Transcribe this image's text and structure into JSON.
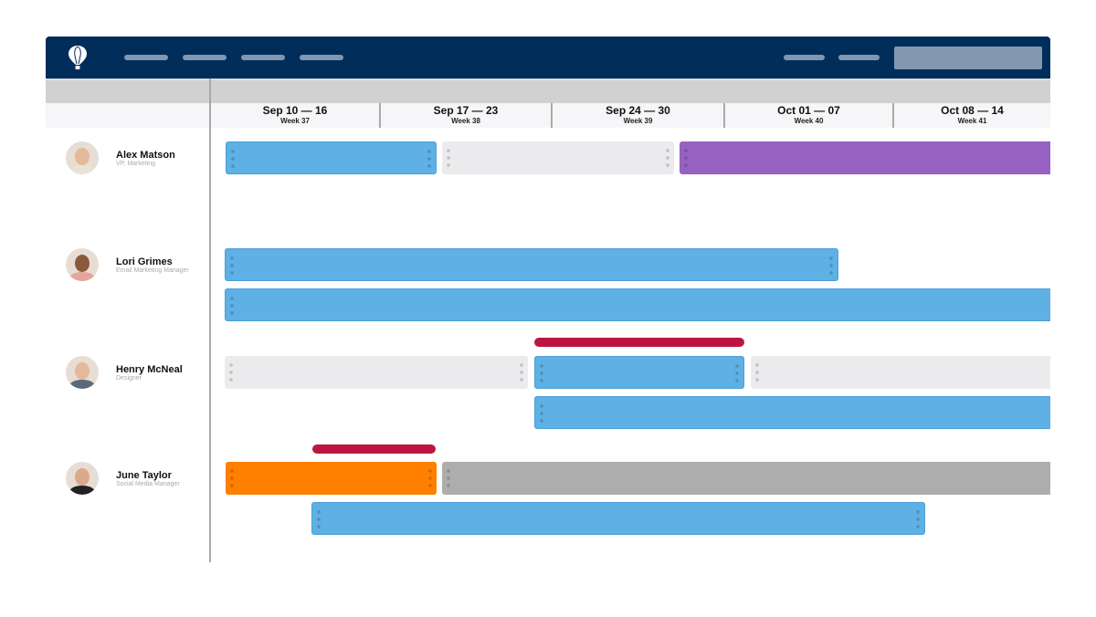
{
  "weeks": [
    {
      "range": "Sep 10 — 16",
      "week": "Week 37"
    },
    {
      "range": "Sep 17 — 23",
      "week": "Week 38"
    },
    {
      "range": "Sep 24 — 30",
      "week": "Week 39"
    },
    {
      "range": "Oct 01 — 07",
      "week": "Week 40"
    },
    {
      "range": "Oct 08 — 14",
      "week": "Week 41"
    }
  ],
  "people": [
    {
      "name": "Alex Matson",
      "title": "VP, Marketing"
    },
    {
      "name": "Lori Grimes",
      "title": "Email Marketing Manager"
    },
    {
      "name": "Henry McNeal",
      "title": "Designer"
    },
    {
      "name": "June Taylor",
      "title": "Social Media Manager"
    }
  ],
  "colors": {
    "nav": "#012d5b",
    "assignment": "#5eb0e5",
    "available": "#ebebed",
    "purple": "#9661c1",
    "orange": "#ff7f00",
    "gray": "#adadad",
    "overbooked": "#bc1640"
  }
}
